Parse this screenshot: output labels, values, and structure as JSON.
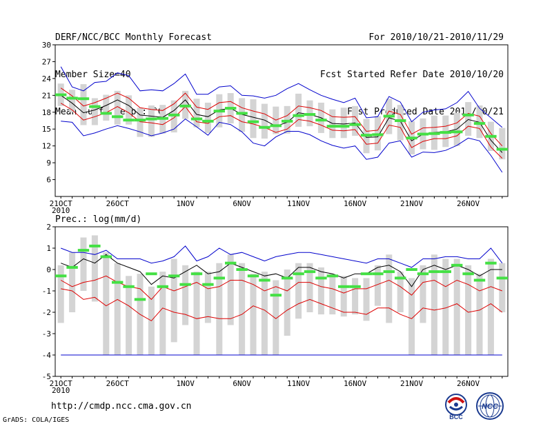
{
  "header": {
    "title": "DERF/NCC/BCC Monthly Forecast",
    "member_size": "Member Size=40",
    "variable": "Mean Surf. Temp.: °C",
    "fcst_period": "For 2010/10/21-2010/11/29",
    "fcst_started": "Fcst Started Refer Date 2010/10/20",
    "fcst_produced": "Fcst Produced Date 2010/10/21"
  },
  "footer": {
    "url": "http://cmdp.ncc.cma.gov.cn",
    "credit": "GrADS: COLA/IGES",
    "logo1_text": "BCC",
    "logo2_text": "NCC"
  },
  "colors": {
    "ensemble_box": "#d4d4d4",
    "member_mark": "#44e044",
    "envelope": "#0000cc",
    "spread": "#dd0000",
    "mean": "#000000"
  },
  "chart_data": [
    {
      "type": "box-ensemble",
      "title": "Mean Surf. Temp.: °C",
      "x_labels": [
        "21OCT",
        "26OCT",
        "1NOV",
        "6NOV",
        "11NOV",
        "16NOV",
        "21NOV",
        "26NOV"
      ],
      "x_label_days": [
        0,
        5,
        11,
        16,
        21,
        26,
        31,
        36
      ],
      "x_sublabel": "2010",
      "days": 40,
      "ylim": [
        3,
        30
      ],
      "yticks": [
        6,
        9,
        12,
        15,
        18,
        21,
        24,
        27,
        30
      ],
      "mean": [
        21.0,
        19.6,
        17.9,
        18.4,
        19.2,
        20.2,
        19.2,
        17.5,
        17.3,
        17.1,
        18.3,
        20.2,
        17.6,
        17.2,
        18.4,
        18.7,
        17.6,
        17.1,
        16.6,
        15.5,
        16.2,
        17.9,
        17.6,
        17.0,
        16.0,
        15.9,
        16.1,
        13.5,
        13.6,
        17.0,
        16.4,
        12.9,
        14.1,
        14.4,
        14.5,
        15.0,
        16.7,
        16.2,
        13.0,
        10.8
      ],
      "upper_red": [
        22.3,
        20.9,
        19.1,
        19.7,
        20.5,
        21.4,
        20.5,
        18.8,
        18.5,
        18.3,
        19.5,
        21.4,
        18.9,
        18.5,
        19.7,
        19.9,
        18.8,
        18.2,
        17.7,
        16.6,
        17.4,
        19.1,
        18.8,
        18.3,
        17.2,
        17.1,
        17.2,
        14.6,
        14.8,
        18.2,
        17.6,
        14.1,
        15.2,
        15.3,
        15.5,
        16.1,
        17.8,
        17.3,
        14.2,
        12.0
      ],
      "lower_red": [
        19.6,
        18.4,
        16.6,
        17.2,
        17.9,
        19.0,
        17.9,
        16.3,
        16.1,
        15.8,
        17.0,
        19.0,
        16.3,
        16.0,
        17.2,
        17.4,
        16.3,
        15.9,
        15.3,
        14.4,
        15.0,
        16.7,
        16.4,
        15.7,
        14.8,
        14.7,
        14.9,
        12.3,
        12.5,
        15.7,
        15.3,
        11.7,
        12.8,
        13.3,
        13.3,
        13.8,
        15.5,
        15.1,
        11.8,
        9.8
      ],
      "upper_blue": [
        26.1,
        22.5,
        21.8,
        23.3,
        23.5,
        25.0,
        24.5,
        21.8,
        22.0,
        21.8,
        23.1,
        24.8,
        21.2,
        21.2,
        22.5,
        22.7,
        21.0,
        20.9,
        20.5,
        21.0,
        22.2,
        23.1,
        22.0,
        21.0,
        20.3,
        19.7,
        20.5,
        17.0,
        17.2,
        20.8,
        19.8,
        16.3,
        18.0,
        18.4,
        18.6,
        19.7,
        21.7,
        18.7,
        17.0,
        15.3
      ],
      "lower_blue": [
        16.4,
        16.2,
        13.8,
        14.3,
        15.0,
        15.6,
        15.1,
        14.5,
        13.8,
        14.3,
        15.0,
        16.8,
        15.4,
        13.9,
        16.2,
        15.8,
        14.5,
        12.5,
        12.0,
        13.6,
        14.6,
        14.6,
        14.0,
        12.9,
        12.1,
        11.6,
        12.0,
        9.6,
        10.0,
        12.5,
        12.9,
        10.0,
        10.9,
        10.8,
        11.2,
        12.1,
        13.4,
        12.9,
        10.3,
        7.3
      ],
      "box_high": [
        23.1,
        22.0,
        23.0,
        20.5,
        21.1,
        21.8,
        21.0,
        18.8,
        19.2,
        19.3,
        20.1,
        21.8,
        20.4,
        19.7,
        21.2,
        21.4,
        20.5,
        20.3,
        19.5,
        19.0,
        19.1,
        21.3,
        20.1,
        19.7,
        18.5,
        18.8,
        19.1,
        16.8,
        17.3,
        20.4,
        19.3,
        16.4,
        16.9,
        17.4,
        17.4,
        17.9,
        19.8,
        19.2,
        16.3,
        15.2
      ],
      "box_low": [
        19.1,
        18.0,
        15.7,
        15.7,
        16.5,
        15.8,
        15.8,
        13.6,
        13.6,
        14.2,
        14.4,
        16.8,
        15.3,
        14.3,
        15.3,
        16.0,
        14.5,
        13.4,
        13.3,
        14.1,
        14.2,
        15.4,
        15.5,
        14.3,
        13.4,
        13.4,
        13.8,
        10.7,
        11.2,
        14.1,
        13.0,
        10.5,
        11.4,
        11.3,
        11.8,
        12.0,
        13.8,
        13.4,
        11.1,
        9.6
      ],
      "green_mark": [
        21.1,
        20.5,
        20.4,
        19.0,
        17.8,
        17.2,
        16.6,
        16.6,
        16.8,
        16.9,
        17.5,
        19.1,
        16.8,
        16.4,
        18.2,
        18.7,
        17.8,
        16.3,
        15.3,
        15.6,
        16.4,
        17.4,
        17.6,
        16.6,
        15.5,
        15.5,
        15.8,
        13.9,
        14.0,
        17.3,
        16.5,
        13.4,
        14.1,
        14.2,
        14.4,
        14.5,
        17.5,
        16.0,
        13.7,
        11.4
      ]
    },
    {
      "type": "box-ensemble",
      "title": "Prec.: log(mm/d)",
      "x_labels": [
        "21OCT",
        "26OCT",
        "1NOV",
        "6NOV",
        "11NOV",
        "16NOV",
        "21NOV",
        "26NOV"
      ],
      "x_label_days": [
        0,
        5,
        11,
        16,
        21,
        26,
        31,
        36
      ],
      "x_sublabel": "2010",
      "days": 40,
      "ylim": [
        -5,
        2
      ],
      "yticks": [
        -5,
        -4,
        -3,
        -2,
        -1,
        0,
        1,
        2
      ],
      "baseline": -4,
      "mean": [
        0.3,
        0.1,
        0.5,
        0.3,
        0.7,
        0.3,
        0.1,
        -0.1,
        -0.7,
        -0.3,
        -0.4,
        -0.1,
        0.2,
        -0.2,
        -0.1,
        0.3,
        0.1,
        -0.1,
        -0.3,
        -0.2,
        -0.4,
        0.1,
        0.1,
        -0.1,
        -0.2,
        -0.4,
        -0.2,
        -0.2,
        0.1,
        0.2,
        -0.1,
        -0.8,
        0.0,
        0.2,
        0.0,
        0.2,
        0.0,
        -0.3,
        0.0,
        0.0
      ],
      "upper_red": [
        -0.5,
        -0.8,
        -0.6,
        -0.5,
        -0.3,
        -0.6,
        -0.8,
        -0.9,
        -1.4,
        -0.8,
        -1.0,
        -0.8,
        -0.6,
        -0.9,
        -0.8,
        -0.5,
        -0.5,
        -0.7,
        -1.0,
        -0.8,
        -1.0,
        -0.6,
        -0.6,
        -0.8,
        -0.9,
        -1.1,
        -0.9,
        -0.9,
        -0.7,
        -0.5,
        -0.8,
        -1.2,
        -0.6,
        -0.5,
        -0.8,
        -0.5,
        -0.7,
        -1.0,
        -0.8,
        -1.0
      ],
      "lower_red": [
        -0.9,
        -1.0,
        -1.4,
        -1.3,
        -1.7,
        -1.4,
        -1.7,
        -2.1,
        -2.4,
        -1.8,
        -2.0,
        -2.1,
        -2.3,
        -2.2,
        -2.3,
        -2.3,
        -2.1,
        -1.7,
        -1.9,
        -2.3,
        -1.9,
        -1.6,
        -1.4,
        -1.6,
        -1.8,
        -2.0,
        -2.0,
        -2.1,
        -1.8,
        -1.8,
        -2.1,
        -2.3,
        -1.8,
        -1.9,
        -1.8,
        -1.6,
        -2.0,
        -1.9,
        -1.6,
        -2.0
      ],
      "upper_blue": [
        1.0,
        0.8,
        0.8,
        0.7,
        0.9,
        0.5,
        0.5,
        0.5,
        0.3,
        0.4,
        0.6,
        1.1,
        0.4,
        0.6,
        1.0,
        0.7,
        0.8,
        0.6,
        0.4,
        0.6,
        0.7,
        0.8,
        0.8,
        0.7,
        0.6,
        0.5,
        0.4,
        0.3,
        0.5,
        0.5,
        0.3,
        0.1,
        0.5,
        0.5,
        0.6,
        0.6,
        0.5,
        0.5,
        1.0,
        0.3
      ],
      "lower_blue": [
        -4.0,
        -4.0,
        -4.0,
        -4.0,
        -4.0,
        -4.0,
        -4.0,
        -4.0,
        -4.0,
        -4.0,
        -4.0,
        -4.0,
        -4.0,
        -4.0,
        -4.0,
        -4.0,
        -4.0,
        -4.0,
        -4.0,
        -4.0,
        -4.0,
        -4.0,
        -4.0,
        -4.0,
        -4.0,
        -4.0,
        -4.0,
        -4.0,
        -4.0,
        -4.0,
        -4.0,
        -4.0,
        -4.0,
        -4.0,
        -4.0,
        -4.0,
        -4.0,
        -4.0,
        -4.0,
        -4.0
      ],
      "box_high": [
        0.2,
        0.8,
        1.5,
        1.6,
        0.8,
        0.3,
        -0.3,
        -0.2,
        -0.8,
        -0.1,
        0.5,
        0.2,
        -0.1,
        -0.1,
        0.3,
        0.7,
        0.3,
        -0.2,
        -0.1,
        -0.5,
        0.0,
        0.3,
        0.3,
        0.1,
        -0.2,
        -0.3,
        -0.4,
        -0.4,
        0.2,
        0.7,
        -0.1,
        -0.4,
        0.2,
        0.7,
        0.5,
        0.5,
        0.2,
        -0.2,
        0.5,
        0.3
      ],
      "box_low": [
        -2.5,
        -2.0,
        -1.0,
        -1.5,
        -4.0,
        -4.0,
        -4.0,
        -4.0,
        -4.0,
        -4.0,
        -3.4,
        -2.6,
        -4.0,
        -2.5,
        -4.0,
        -2.6,
        -4.0,
        -4.0,
        -4.0,
        -4.0,
        -3.1,
        -2.3,
        -2.0,
        -2.1,
        -2.1,
        -2.2,
        -2.1,
        -2.4,
        -1.7,
        -2.5,
        -2.0,
        -4.0,
        -2.5,
        -4.0,
        -4.0,
        -4.0,
        -4.0,
        -4.0,
        -4.0,
        -2.0
      ],
      "green_mark": [
        -0.3,
        0.1,
        0.9,
        1.1,
        0.6,
        -0.6,
        -0.8,
        -1.4,
        -0.2,
        -0.8,
        -0.3,
        -0.7,
        -0.2,
        -0.7,
        -0.4,
        0.3,
        0.0,
        -0.3,
        -0.5,
        -1.2,
        -0.4,
        -0.2,
        -0.1,
        -0.4,
        -0.3,
        -0.8,
        -0.8,
        -0.2,
        -0.2,
        -0.1,
        -0.4,
        0.0,
        -0.2,
        -0.1,
        -0.1,
        0.2,
        -0.2,
        -0.5,
        0.3,
        -0.4
      ]
    }
  ]
}
